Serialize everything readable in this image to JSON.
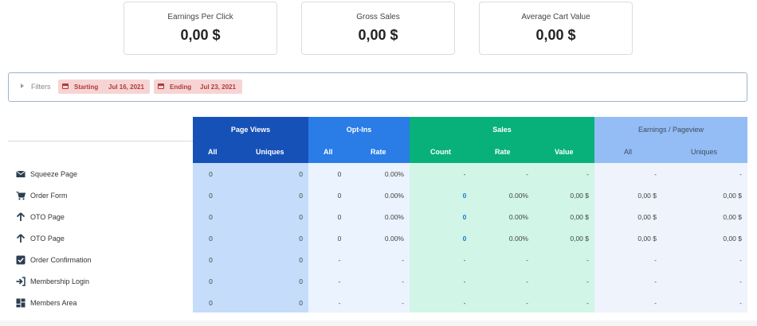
{
  "cards": [
    {
      "label": "Earnings Per Click",
      "value": "0,00 $"
    },
    {
      "label": "Gross Sales",
      "value": "0,00 $"
    },
    {
      "label": "Average Cart Value",
      "value": "0,00 $"
    }
  ],
  "filters": {
    "label": "Filters",
    "starting_label": "Starting",
    "starting_date": "Jul 16, 2021",
    "ending_label": "Ending",
    "ending_date": "Jul 23, 2021"
  },
  "table": {
    "groups": {
      "page_views": {
        "title": "Page Views",
        "all": "All",
        "uniques": "Uniques"
      },
      "opt_ins": {
        "title": "Opt-Ins",
        "all": "All",
        "rate": "Rate"
      },
      "sales": {
        "title": "Sales",
        "count": "Count",
        "rate": "Rate",
        "value": "Value"
      },
      "earnings": {
        "title": "Earnings / Pageview",
        "all": "All",
        "uniques": "Uniques"
      }
    },
    "rows": [
      {
        "label": "Squeeze Page",
        "icon": "envelope-icon",
        "pv_all": "0",
        "pv_uniq": "0",
        "oi_all": "0",
        "oi_rate": "0.00%",
        "s_count": "-",
        "s_rate": "-",
        "s_value": "-",
        "e_all": "-",
        "e_uniq": "-"
      },
      {
        "label": "Order Form",
        "icon": "cart-icon",
        "pv_all": "0",
        "pv_uniq": "0",
        "oi_all": "0",
        "oi_rate": "0.00%",
        "s_count": "0",
        "s_rate": "0.00%",
        "s_value": "0,00 $",
        "e_all": "0,00 $",
        "e_uniq": "0,00 $"
      },
      {
        "label": "OTO Page",
        "icon": "arrow-up-icon",
        "pv_all": "0",
        "pv_uniq": "0",
        "oi_all": "0",
        "oi_rate": "0.00%",
        "s_count": "0",
        "s_rate": "0.00%",
        "s_value": "0,00 $",
        "e_all": "0,00 $",
        "e_uniq": "0,00 $"
      },
      {
        "label": "OTO Page",
        "icon": "arrow-up-icon",
        "pv_all": "0",
        "pv_uniq": "0",
        "oi_all": "0",
        "oi_rate": "0.00%",
        "s_count": "0",
        "s_rate": "0.00%",
        "s_value": "0,00 $",
        "e_all": "0,00 $",
        "e_uniq": "0,00 $"
      },
      {
        "label": "Order Confirmation",
        "icon": "check-square-icon",
        "pv_all": "0",
        "pv_uniq": "0",
        "oi_all": "-",
        "oi_rate": "-",
        "s_count": "-",
        "s_rate": "-",
        "s_value": "-",
        "e_all": "-",
        "e_uniq": "-"
      },
      {
        "label": "Membership Login",
        "icon": "sign-in-icon",
        "pv_all": "0",
        "pv_uniq": "0",
        "oi_all": "-",
        "oi_rate": "-",
        "s_count": "-",
        "s_rate": "-",
        "s_value": "-",
        "e_all": "-",
        "e_uniq": "-"
      },
      {
        "label": "Members Area",
        "icon": "dashboard-icon",
        "pv_all": "0",
        "pv_uniq": "0",
        "oi_all": "-",
        "oi_rate": "-",
        "s_count": "-",
        "s_rate": "-",
        "s_value": "-",
        "e_all": "-",
        "e_uniq": "-"
      }
    ]
  },
  "colors": {
    "page_views_header": "#1651b8",
    "opt_ins_header": "#2a7ce6",
    "sales_header": "#08b07a",
    "earnings_header": "#93bdf4",
    "page_views_body": "#c5dcfa",
    "opt_ins_body": "#eaf3fe",
    "sales_body": "#d1f5e6",
    "earnings_body": "#eef3fc",
    "chip_bg": "#f7d4d4",
    "chip_text": "#b03a3a",
    "link": "#1a78d6"
  }
}
